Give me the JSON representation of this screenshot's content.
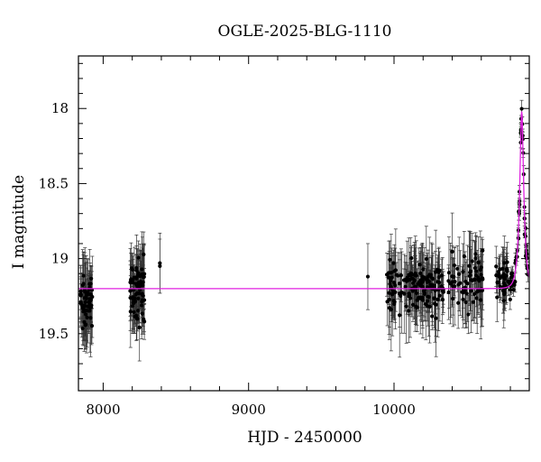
{
  "chart_data": {
    "type": "scatter",
    "title": "OGLE-2025-BLG-1110",
    "xlabel": "HJD - 2450000",
    "ylabel": "I magnitude",
    "xlim": [
      7830,
      10930
    ],
    "ylim": [
      19.88,
      17.65
    ],
    "y_inverted": true,
    "x_ticks": [
      8000,
      9000,
      10000
    ],
    "y_ticks": [
      18,
      18.5,
      19,
      19.5
    ],
    "colors": {
      "points": "#000000",
      "model": "#e020e0"
    },
    "model": {
      "baseline_mag": 19.2,
      "peak_time": 10878,
      "peak_mag": 18.02,
      "tE": 28
    },
    "series": [
      {
        "type": "scatter-errorbar",
        "seasons": [
          {
            "range": [
              7845,
              7925
            ],
            "count": 60,
            "center": 19.28,
            "spread": 0.14,
            "err": [
              0.08,
              0.3
            ]
          },
          {
            "range": [
              8185,
              8285
            ],
            "count": 75,
            "center": 19.2,
            "spread": 0.17,
            "err": [
              0.08,
              0.25
            ]
          },
          {
            "range": [
              9950,
              10340
            ],
            "count": 150,
            "center": 19.18,
            "spread": 0.15,
            "err": [
              0.07,
              0.28
            ]
          },
          {
            "range": [
              10370,
              10610
            ],
            "count": 70,
            "center": 19.15,
            "spread": 0.15,
            "err": [
              0.07,
              0.28
            ]
          },
          {
            "range": [
              10700,
              10790
            ],
            "count": 40,
            "center": 19.15,
            "spread": 0.12,
            "err": [
              0.06,
              0.2
            ]
          }
        ],
        "rise": {
          "range": [
            10790,
            10920
          ],
          "count": 60
        },
        "extra_points": [
          {
            "x": 8390,
            "y": 19.03,
            "err": 0.2
          },
          {
            "x": 8390,
            "y": 19.05,
            "err": 0.18
          },
          {
            "x": 9820,
            "y": 19.12,
            "err": 0.22
          }
        ]
      }
    ]
  }
}
